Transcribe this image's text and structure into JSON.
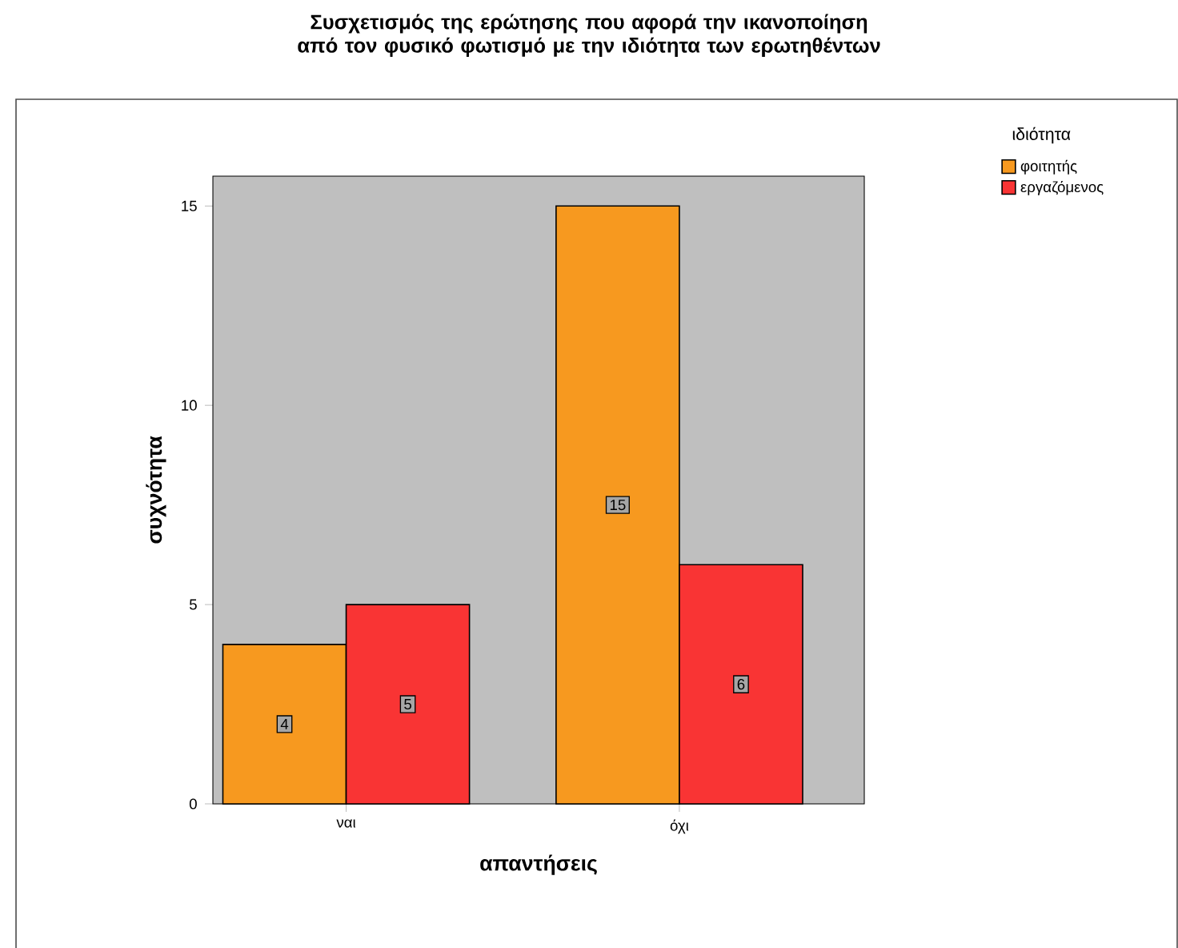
{
  "chart_data": {
    "type": "bar",
    "title": "Συσχετισμός της ερώτησης που αφορά την ικανοποίηση από τον φυσικό φωτισμό με την ιδιότητα των ερωτηθέντων",
    "xlabel": "απαντήσεις",
    "ylabel": "συχνότητα",
    "legend_title": "ιδιότητα",
    "categories": [
      "ναι",
      "όχι"
    ],
    "series": [
      {
        "name": "φοιτητής",
        "color": "#f7991f",
        "values": [
          4,
          15
        ]
      },
      {
        "name": "εργαζόμενος",
        "color": "#f93434",
        "values": [
          5,
          6
        ]
      }
    ],
    "ylim": [
      0,
      15.75
    ],
    "yticks": [
      0,
      5,
      10,
      15
    ],
    "data_labels": true,
    "legend": "top right"
  }
}
